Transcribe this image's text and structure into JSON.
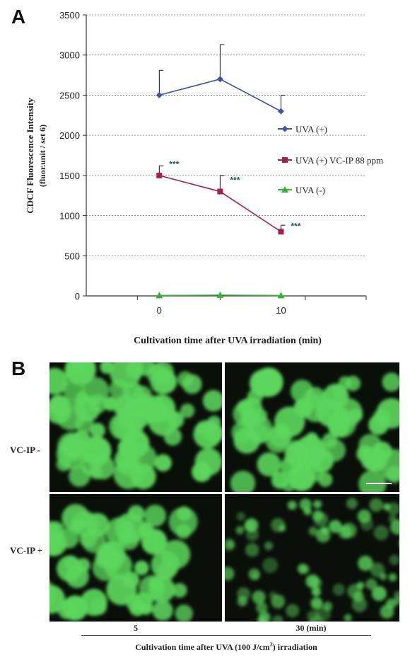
{
  "panel_a": {
    "letter": "A"
  },
  "panel_b": {
    "letter": "B",
    "row_labels": [
      "VC-IP -",
      "VC-IP +"
    ],
    "col_labels": [
      "5",
      "30 (min)"
    ],
    "xlabel_prefix": "Cultivation time after UVA (100 J/cm",
    "xlabel_sup": "2",
    "xlabel_suffix": ") irradiation"
  },
  "chart_data": {
    "type": "line",
    "title": "",
    "xlabel": "Cultivation time after UVA irradiation (min)",
    "ylabel": "CDCF Fluorescence Intensity",
    "ylabel2": "(fluor.unit / set 6)",
    "x": [
      0,
      5,
      10
    ],
    "x_tick_labels": [
      "0",
      "",
      "10"
    ],
    "ylim": [
      0,
      3500
    ],
    "y_ticks": [
      0,
      500,
      1000,
      1500,
      2000,
      2500,
      3000,
      3500
    ],
    "grid": "horizontal dashed",
    "legend_position": "right",
    "series": [
      {
        "name": "UVA (+)",
        "color": "#3a55a6",
        "marker": "diamond",
        "values": [
          2500,
          2700,
          2300
        ],
        "errors": [
          310,
          430,
          200
        ],
        "annotations": [
          "",
          "",
          ""
        ]
      },
      {
        "name": "UVA (+) VC-IP 88 ppm",
        "color": "#a3214a",
        "marker": "square",
        "values": [
          1500,
          1300,
          800
        ],
        "errors": [
          120,
          200,
          80
        ],
        "annotations": [
          "***",
          "***",
          "***"
        ]
      },
      {
        "name": "UVA (-)",
        "color": "#2fb52f",
        "marker": "triangle",
        "values": [
          5,
          10,
          5
        ],
        "errors": [
          0,
          0,
          0
        ],
        "annotations": [
          "",
          "",
          ""
        ]
      }
    ]
  },
  "colors": {
    "fluorescence": "#5bd65b",
    "background": "#0a0f0a"
  }
}
